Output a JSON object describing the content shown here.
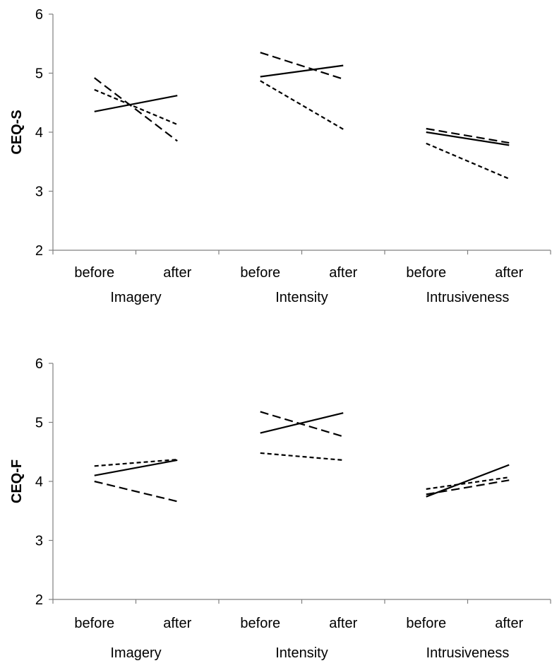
{
  "chart_data": [
    {
      "type": "line",
      "title": "",
      "ylabel": "CEQ-S",
      "ylim": [
        2,
        6
      ],
      "yticks": [
        2,
        3,
        4,
        5,
        6
      ],
      "groups": [
        {
          "name": "Imagery",
          "ticks": [
            "before",
            "after"
          ]
        },
        {
          "name": "Intensity",
          "ticks": [
            "before",
            "after"
          ]
        },
        {
          "name": "Intrusiveness",
          "ticks": [
            "before",
            "after"
          ]
        }
      ],
      "series": [
        {
          "style": "solid",
          "values": [
            [
              4.35,
              4.62
            ],
            [
              4.94,
              5.13
            ],
            [
              4.0,
              3.78
            ]
          ]
        },
        {
          "style": "long-dash",
          "values": [
            [
              4.92,
              3.85
            ],
            [
              5.35,
              4.9
            ],
            [
              4.06,
              3.82
            ]
          ]
        },
        {
          "style": "short-dash",
          "values": [
            [
              4.72,
              4.13
            ],
            [
              4.87,
              4.05
            ],
            [
              3.81,
              3.21
            ]
          ]
        }
      ],
      "grid": false,
      "legend": "none"
    },
    {
      "type": "line",
      "title": "",
      "ylabel": "CEQ-F",
      "ylim": [
        2,
        6
      ],
      "yticks": [
        2,
        3,
        4,
        5,
        6
      ],
      "groups": [
        {
          "name": "Imagery",
          "ticks": [
            "before",
            "after"
          ]
        },
        {
          "name": "Intensity",
          "ticks": [
            "before",
            "after"
          ]
        },
        {
          "name": "Intrusiveness",
          "ticks": [
            "before",
            "after"
          ]
        }
      ],
      "series": [
        {
          "style": "solid",
          "values": [
            [
              4.1,
              4.36
            ],
            [
              4.82,
              5.16
            ],
            [
              3.74,
              4.28
            ]
          ]
        },
        {
          "style": "long-dash",
          "values": [
            [
              4.0,
              3.66
            ],
            [
              5.18,
              4.76
            ],
            [
              3.78,
              4.02
            ]
          ]
        },
        {
          "style": "short-dash",
          "values": [
            [
              4.26,
              4.37
            ],
            [
              4.48,
              4.36
            ],
            [
              3.87,
              4.07
            ]
          ]
        }
      ],
      "grid": false,
      "legend": "none"
    }
  ]
}
